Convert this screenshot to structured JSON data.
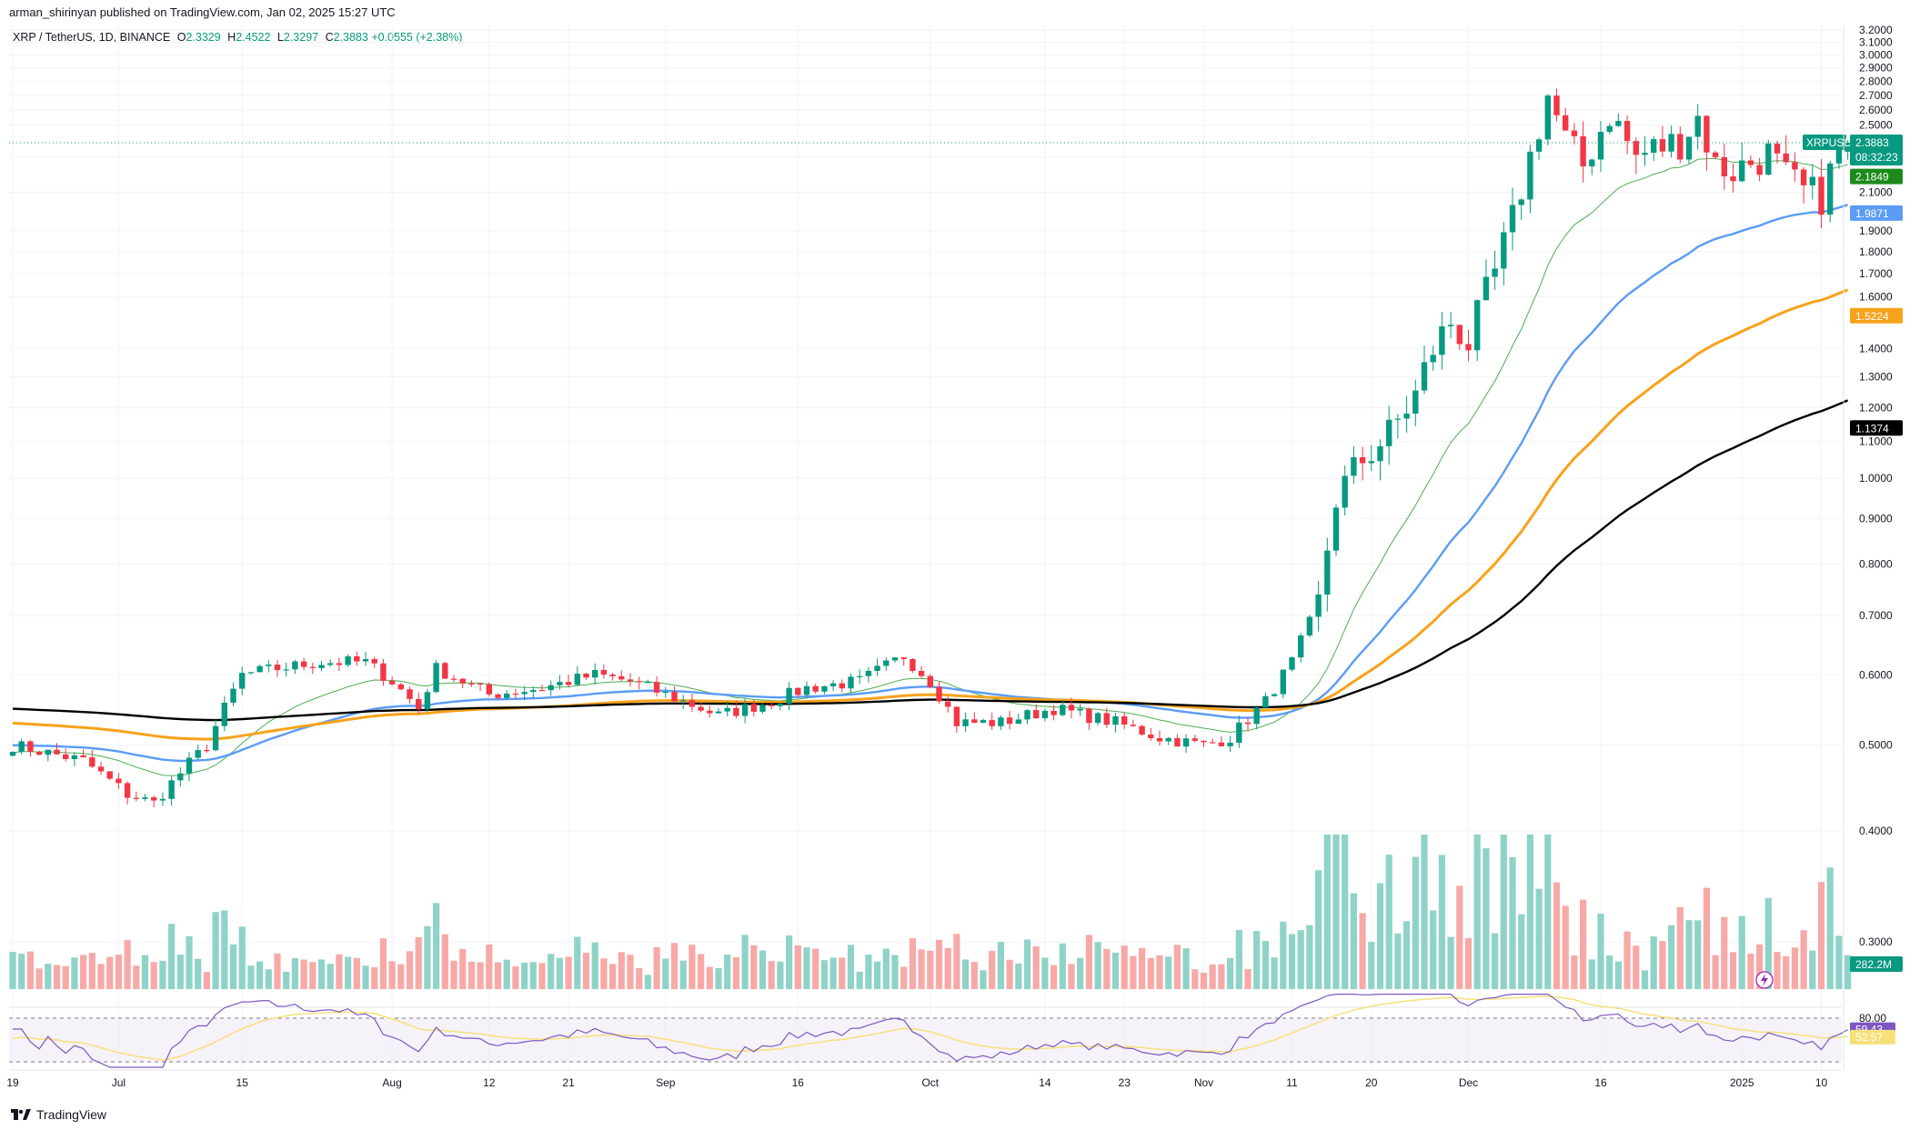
{
  "header": {
    "publisher": "arman_shirinyan published on TradingView.com, Jan 02, 2025 15:27 UTC"
  },
  "symbol": {
    "title": "XRP / TetherUS, 1D, BINANCE",
    "open_label": "O",
    "open": "2.3329",
    "high_label": "H",
    "high": "2.4522",
    "low_label": "L",
    "low": "2.3297",
    "close_label": "C",
    "close": "2.3883",
    "change": "+0.0555 (+2.38%)"
  },
  "footer": {
    "brand": "TradingView"
  },
  "colors": {
    "up": "#089981",
    "down": "#f23645",
    "up_vol": "#8fd3c8",
    "down_vol": "#f7a9a7",
    "ema20": "#4caf50",
    "ema50": "#5b9cf6",
    "ema100": "#f7a21b",
    "ema200": "#000000",
    "rsi": "#7e57c2",
    "rsi_ma": "#f7e07a"
  },
  "chart_data": {
    "type": "candlestick",
    "y_scale": "log",
    "ylim": [
      0.23,
      3.25
    ],
    "y_ticks": [
      "3.2000",
      "3.1000",
      "3.0000",
      "2.9000",
      "2.8000",
      "2.7000",
      "2.6000",
      "2.5000",
      "2.3000",
      "2.1000",
      "1.9000",
      "1.8000",
      "1.7000",
      "1.6000",
      "1.4000",
      "1.3000",
      "1.2000",
      "1.1000",
      "1.0000",
      "0.9000",
      "0.8000",
      "0.7000",
      "0.6000",
      "0.5000",
      "0.4000",
      "0.3000"
    ],
    "x_ticks": [
      {
        "label": "19",
        "day": 0
      },
      {
        "label": "Jul",
        "day": 12
      },
      {
        "label": "15",
        "day": 26
      },
      {
        "label": "Aug",
        "day": 43
      },
      {
        "label": "12",
        "day": 54
      },
      {
        "label": "21",
        "day": 63
      },
      {
        "label": "Sep",
        "day": 74
      },
      {
        "label": "16",
        "day": 89
      },
      {
        "label": "Oct",
        "day": 104
      },
      {
        "label": "14",
        "day": 117
      },
      {
        "label": "23",
        "day": 126
      },
      {
        "label": "Nov",
        "day": 135
      },
      {
        "label": "11",
        "day": 145
      },
      {
        "label": "20",
        "day": 154
      },
      {
        "label": "Dec",
        "day": 165
      },
      {
        "label": "16",
        "day": 180
      },
      {
        "label": "2025",
        "day": 196
      },
      {
        "label": "10",
        "day": 205
      }
    ],
    "price_tags": [
      {
        "label": "XRPUSDT",
        "value": "2.3883",
        "sub": "08:32:23",
        "color": "#089981"
      },
      {
        "value": "2.1849",
        "color": "#1b8a1b"
      },
      {
        "value": "1.9871",
        "color": "#5b9cf6"
      },
      {
        "value": "1.5224",
        "color": "#f7a21b"
      },
      {
        "value": "1.1374",
        "color": "#000000"
      }
    ],
    "volume_tag": "282.2M",
    "rsi_ticks": [
      "80.00"
    ],
    "rsi_tags": [
      {
        "value": "59.43",
        "color": "#7e57c2"
      },
      {
        "value": "52.57",
        "color": "#f7e07a"
      }
    ]
  }
}
